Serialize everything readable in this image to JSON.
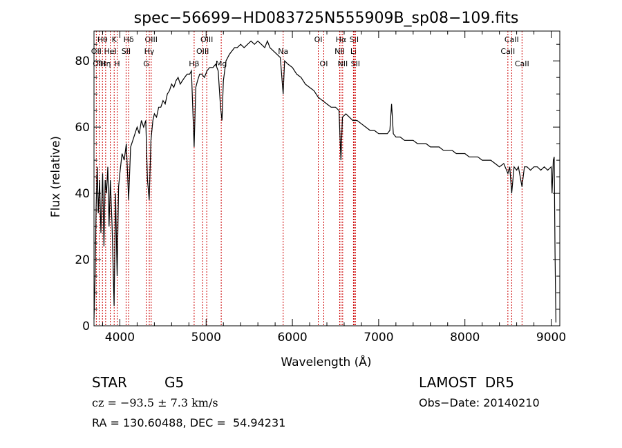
{
  "colors": {
    "spectrum": "#000000",
    "line_markers": "#cc0000",
    "background": "#ffffff"
  },
  "footer": {
    "object_class": "STAR",
    "subclass": "G5",
    "survey": "LAMOST  DR5",
    "cz": "cz = −93.5 ± 7.3 km/s",
    "obs_date": "Obs−Date: 20140210",
    "coords": "RA = 130.60488, DEC =  54.94231"
  },
  "chart_data": {
    "type": "line",
    "title": "spec−56699−HD083725N555909B_sp08−109.fits",
    "xlabel": "Wavelength (Å)",
    "ylabel": "Flux (relative)",
    "xlim": [
      3700,
      9100
    ],
    "ylim": [
      0,
      89
    ],
    "xticks": [
      4000,
      5000,
      6000,
      7000,
      8000,
      9000
    ],
    "yticks": [
      0,
      20,
      40,
      60,
      80
    ],
    "grid": false,
    "series": [
      {
        "points": [
          [
            3700,
            2
          ],
          [
            3712,
            14
          ],
          [
            3725,
            36
          ],
          [
            3738,
            48
          ],
          [
            3750,
            34
          ],
          [
            3765,
            44
          ],
          [
            3780,
            28
          ],
          [
            3800,
            46
          ],
          [
            3815,
            24
          ],
          [
            3830,
            44
          ],
          [
            3845,
            40
          ],
          [
            3860,
            48
          ],
          [
            3875,
            30
          ],
          [
            3890,
            44
          ],
          [
            3910,
            30
          ],
          [
            3933,
            6
          ],
          [
            3950,
            40
          ],
          [
            3968,
            15
          ],
          [
            3985,
            42
          ],
          [
            4000,
            46
          ],
          [
            4025,
            52
          ],
          [
            4050,
            50
          ],
          [
            4075,
            55
          ],
          [
            4101,
            38
          ],
          [
            4125,
            54
          ],
          [
            4150,
            56
          ],
          [
            4175,
            58
          ],
          [
            4200,
            60
          ],
          [
            4225,
            58
          ],
          [
            4250,
            62
          ],
          [
            4275,
            60
          ],
          [
            4300,
            62
          ],
          [
            4320,
            44
          ],
          [
            4340,
            38
          ],
          [
            4360,
            56
          ],
          [
            4383,
            62
          ],
          [
            4400,
            64
          ],
          [
            4425,
            63
          ],
          [
            4450,
            66
          ],
          [
            4475,
            66
          ],
          [
            4500,
            68
          ],
          [
            4525,
            67
          ],
          [
            4550,
            70
          ],
          [
            4575,
            71
          ],
          [
            4600,
            73
          ],
          [
            4625,
            72
          ],
          [
            4650,
            74
          ],
          [
            4675,
            75
          ],
          [
            4700,
            73
          ],
          [
            4725,
            74
          ],
          [
            4750,
            75
          ],
          [
            4780,
            76
          ],
          [
            4810,
            76
          ],
          [
            4830,
            77
          ],
          [
            4861,
            54
          ],
          [
            4880,
            72
          ],
          [
            4900,
            74
          ],
          [
            4925,
            76
          ],
          [
            4950,
            76
          ],
          [
            4980,
            75
          ],
          [
            5010,
            77
          ],
          [
            5040,
            78
          ],
          [
            5080,
            78
          ],
          [
            5110,
            79
          ],
          [
            5140,
            77
          ],
          [
            5167,
            66
          ],
          [
            5184,
            62
          ],
          [
            5200,
            74
          ],
          [
            5230,
            80
          ],
          [
            5270,
            82
          ],
          [
            5300,
            83
          ],
          [
            5330,
            84
          ],
          [
            5360,
            84
          ],
          [
            5400,
            85
          ],
          [
            5440,
            84
          ],
          [
            5480,
            85
          ],
          [
            5520,
            86
          ],
          [
            5560,
            85
          ],
          [
            5600,
            86
          ],
          [
            5640,
            85
          ],
          [
            5680,
            84
          ],
          [
            5710,
            86
          ],
          [
            5740,
            84
          ],
          [
            5780,
            83
          ],
          [
            5820,
            82
          ],
          [
            5860,
            81
          ],
          [
            5893,
            70
          ],
          [
            5910,
            80
          ],
          [
            5950,
            79
          ],
          [
            6000,
            78
          ],
          [
            6050,
            76
          ],
          [
            6100,
            75
          ],
          [
            6150,
            73
          ],
          [
            6200,
            72
          ],
          [
            6250,
            71
          ],
          [
            6300,
            69
          ],
          [
            6350,
            68
          ],
          [
            6400,
            67
          ],
          [
            6450,
            66
          ],
          [
            6500,
            66
          ],
          [
            6540,
            65
          ],
          [
            6563,
            50
          ],
          [
            6580,
            63
          ],
          [
            6620,
            64
          ],
          [
            6660,
            63
          ],
          [
            6700,
            62
          ],
          [
            6750,
            62
          ],
          [
            6800,
            61
          ],
          [
            6850,
            60
          ],
          [
            6900,
            59
          ],
          [
            6950,
            59
          ],
          [
            7000,
            58
          ],
          [
            7050,
            58
          ],
          [
            7100,
            58
          ],
          [
            7130,
            59
          ],
          [
            7150,
            67
          ],
          [
            7170,
            58
          ],
          [
            7200,
            57
          ],
          [
            7250,
            57
          ],
          [
            7300,
            56
          ],
          [
            7350,
            56
          ],
          [
            7400,
            56
          ],
          [
            7450,
            55
          ],
          [
            7500,
            55
          ],
          [
            7550,
            55
          ],
          [
            7600,
            54
          ],
          [
            7650,
            54
          ],
          [
            7700,
            54
          ],
          [
            7750,
            53
          ],
          [
            7800,
            53
          ],
          [
            7850,
            53
          ],
          [
            7900,
            52
          ],
          [
            7950,
            52
          ],
          [
            8000,
            52
          ],
          [
            8050,
            51
          ],
          [
            8100,
            51
          ],
          [
            8150,
            51
          ],
          [
            8200,
            50
          ],
          [
            8250,
            50
          ],
          [
            8300,
            50
          ],
          [
            8350,
            49
          ],
          [
            8400,
            48
          ],
          [
            8450,
            49
          ],
          [
            8498,
            46
          ],
          [
            8520,
            48
          ],
          [
            8542,
            40
          ],
          [
            8570,
            48
          ],
          [
            8600,
            47
          ],
          [
            8620,
            48
          ],
          [
            8662,
            42
          ],
          [
            8690,
            48
          ],
          [
            8720,
            48
          ],
          [
            8760,
            47
          ],
          [
            8800,
            48
          ],
          [
            8840,
            48
          ],
          [
            8880,
            47
          ],
          [
            8920,
            48
          ],
          [
            8960,
            47
          ],
          [
            9000,
            48
          ],
          [
            9010,
            40
          ],
          [
            9025,
            50
          ],
          [
            9035,
            51
          ],
          [
            9045,
            22
          ],
          [
            9055,
            1
          ]
        ]
      }
    ],
    "line_markers": [
      {
        "label": "Hθ",
        "x": 3798,
        "row": 0
      },
      {
        "label": "OII",
        "x": 3727,
        "row": 1
      },
      {
        "label": "OIII",
        "x": 3760,
        "row": 2
      },
      {
        "label": "K",
        "x": 3934,
        "row": 0
      },
      {
        "label": "HeI",
        "x": 3889,
        "row": 1
      },
      {
        "label": "Hη",
        "x": 3835,
        "row": 2
      },
      {
        "label": "Hδ",
        "x": 4102,
        "row": 0
      },
      {
        "label": "SII",
        "x": 4072,
        "row": 1
      },
      {
        "label": "H",
        "x": 3969,
        "row": 2
      },
      {
        "label": "OIII",
        "x": 4363,
        "row": 0
      },
      {
        "label": "Hγ",
        "x": 4341,
        "row": 1
      },
      {
        "label": "G",
        "x": 4305,
        "row": 2
      },
      {
        "label": "Hβ",
        "x": 4861,
        "row": 2
      },
      {
        "label": "OIII",
        "x": 5007,
        "row": 0
      },
      {
        "label": "OIII",
        "x": 4959,
        "row": 1
      },
      {
        "label": "Mg",
        "x": 5175,
        "row": 2
      },
      {
        "label": "Na",
        "x": 5893,
        "row": 1
      },
      {
        "label": "OI",
        "x": 6300,
        "row": 0
      },
      {
        "label": "OI",
        "x": 6364,
        "row": 2
      },
      {
        "label": "Hα",
        "x": 6563,
        "row": 0
      },
      {
        "label": "NII",
        "x": 6548,
        "row": 1
      },
      {
        "label": "NII",
        "x": 6583,
        "row": 2
      },
      {
        "label": "SII",
        "x": 6716,
        "row": 0
      },
      {
        "label": "Li",
        "x": 6708,
        "row": 1
      },
      {
        "label": "SII",
        "x": 6731,
        "row": 2
      },
      {
        "label": "CaII",
        "x": 8542,
        "row": 0
      },
      {
        "label": "CaII",
        "x": 8498,
        "row": 1
      },
      {
        "label": "CaII",
        "x": 8662,
        "row": 2
      }
    ]
  }
}
